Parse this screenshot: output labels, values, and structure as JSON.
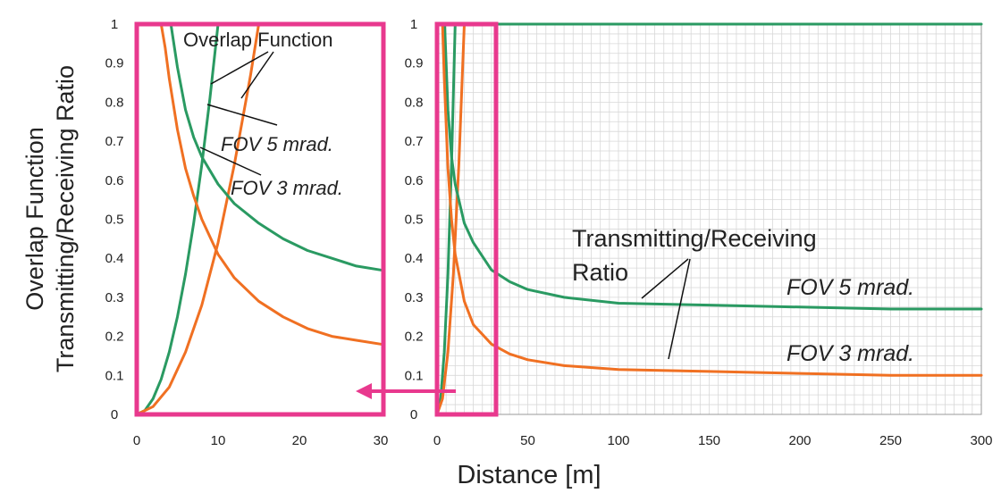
{
  "colors": {
    "green": "#2a9a62",
    "orange": "#f07022",
    "highlight": "#e8398e",
    "grid": "#d8d8d8"
  },
  "labels": {
    "ylabel_line1": "Overlap Function",
    "ylabel_line2": "Transmitting/Receiving Ratio",
    "xlabel": "Distance [m]",
    "overlap_function": "Overlap Function",
    "fov5_left": "FOV 5 mrad.",
    "fov3_left": "FOV 3 mrad.",
    "tr_ratio_line1": "Transmitting/Receiving",
    "tr_ratio_line2": "Ratio",
    "fov5_right": "FOV  5 mrad.",
    "fov3_right": "FOV  3 mrad."
  },
  "chart_data": [
    {
      "type": "line",
      "panel": "zoomed",
      "xlim": [
        0,
        30
      ],
      "ylim": [
        0,
        1
      ],
      "x_ticks": [
        "0",
        "10",
        "20",
        "30"
      ],
      "y_ticks": [
        "0",
        "0.1",
        "0.2",
        "0.3",
        "0.4",
        "0.5",
        "0.6",
        "0.7",
        "0.8",
        "0.9",
        "1"
      ],
      "grid": false,
      "series": [
        {
          "name": "Overlap Function FOV 5 mrad.",
          "color": "green",
          "x": [
            0,
            1,
            2,
            3,
            4,
            5,
            6,
            7,
            8,
            9,
            10
          ],
          "y": [
            0,
            0.01,
            0.04,
            0.09,
            0.16,
            0.25,
            0.36,
            0.49,
            0.64,
            0.81,
            1.0
          ]
        },
        {
          "name": "Overlap Function FOV 3 mrad.",
          "color": "orange",
          "x": [
            0,
            2,
            4,
            6,
            8,
            10,
            12,
            14,
            15
          ],
          "y": [
            0,
            0.02,
            0.07,
            0.16,
            0.28,
            0.44,
            0.64,
            0.87,
            1.0
          ]
        },
        {
          "name": "Transmitting/Receiving Ratio FOV 5 mrad.",
          "color": "green",
          "x": [
            4.2,
            5,
            6,
            7,
            8,
            10,
            12,
            15,
            18,
            21,
            24,
            27,
            30
          ],
          "y": [
            1.0,
            0.89,
            0.78,
            0.71,
            0.66,
            0.59,
            0.54,
            0.49,
            0.45,
            0.42,
            0.4,
            0.38,
            0.37
          ]
        },
        {
          "name": "Transmitting/Receiving Ratio FOV 3 mrad.",
          "color": "orange",
          "x": [
            3,
            3.5,
            4,
            5,
            6,
            7,
            8,
            10,
            12,
            15,
            18,
            21,
            24,
            27,
            30
          ],
          "y": [
            1.0,
            0.94,
            0.86,
            0.73,
            0.63,
            0.56,
            0.5,
            0.41,
            0.35,
            0.29,
            0.25,
            0.22,
            0.2,
            0.19,
            0.18
          ]
        }
      ]
    },
    {
      "type": "line",
      "panel": "full",
      "xlim": [
        0,
        300
      ],
      "ylim": [
        0,
        1
      ],
      "x_ticks": [
        "0",
        "50",
        "100",
        "150",
        "200",
        "250",
        "300"
      ],
      "y_ticks": [
        "0",
        "0.1",
        "0.2",
        "0.3",
        "0.4",
        "0.5",
        "0.6",
        "0.7",
        "0.8",
        "0.9",
        "1"
      ],
      "grid": true,
      "series": [
        {
          "name": "Overlap Function FOV 5 mrad.",
          "color": "green",
          "x": [
            0,
            2,
            4,
            6,
            8,
            10,
            300
          ],
          "y": [
            0,
            0.04,
            0.16,
            0.36,
            0.64,
            1.0,
            1.0
          ]
        },
        {
          "name": "Overlap Function FOV 3 mrad.",
          "color": "orange",
          "x": [
            0,
            3,
            6,
            9,
            12,
            15
          ],
          "y": [
            0,
            0.04,
            0.16,
            0.36,
            0.64,
            1.0
          ]
        },
        {
          "name": "Transmitting/Receiving Ratio FOV 5 mrad.",
          "color": "green",
          "x": [
            4.2,
            6,
            8,
            10,
            15,
            20,
            30,
            40,
            50,
            70,
            100,
            150,
            200,
            250,
            300
          ],
          "y": [
            1.0,
            0.78,
            0.66,
            0.59,
            0.49,
            0.44,
            0.37,
            0.34,
            0.32,
            0.3,
            0.285,
            0.28,
            0.275,
            0.27,
            0.27
          ]
        },
        {
          "name": "Transmitting/Receiving Ratio FOV 3 mrad.",
          "color": "orange",
          "x": [
            3,
            4,
            6,
            8,
            10,
            15,
            20,
            30,
            40,
            50,
            70,
            100,
            150,
            200,
            250,
            300
          ],
          "y": [
            1.0,
            0.86,
            0.63,
            0.5,
            0.41,
            0.29,
            0.23,
            0.18,
            0.155,
            0.14,
            0.125,
            0.115,
            0.11,
            0.105,
            0.1,
            0.1
          ]
        }
      ]
    }
  ]
}
